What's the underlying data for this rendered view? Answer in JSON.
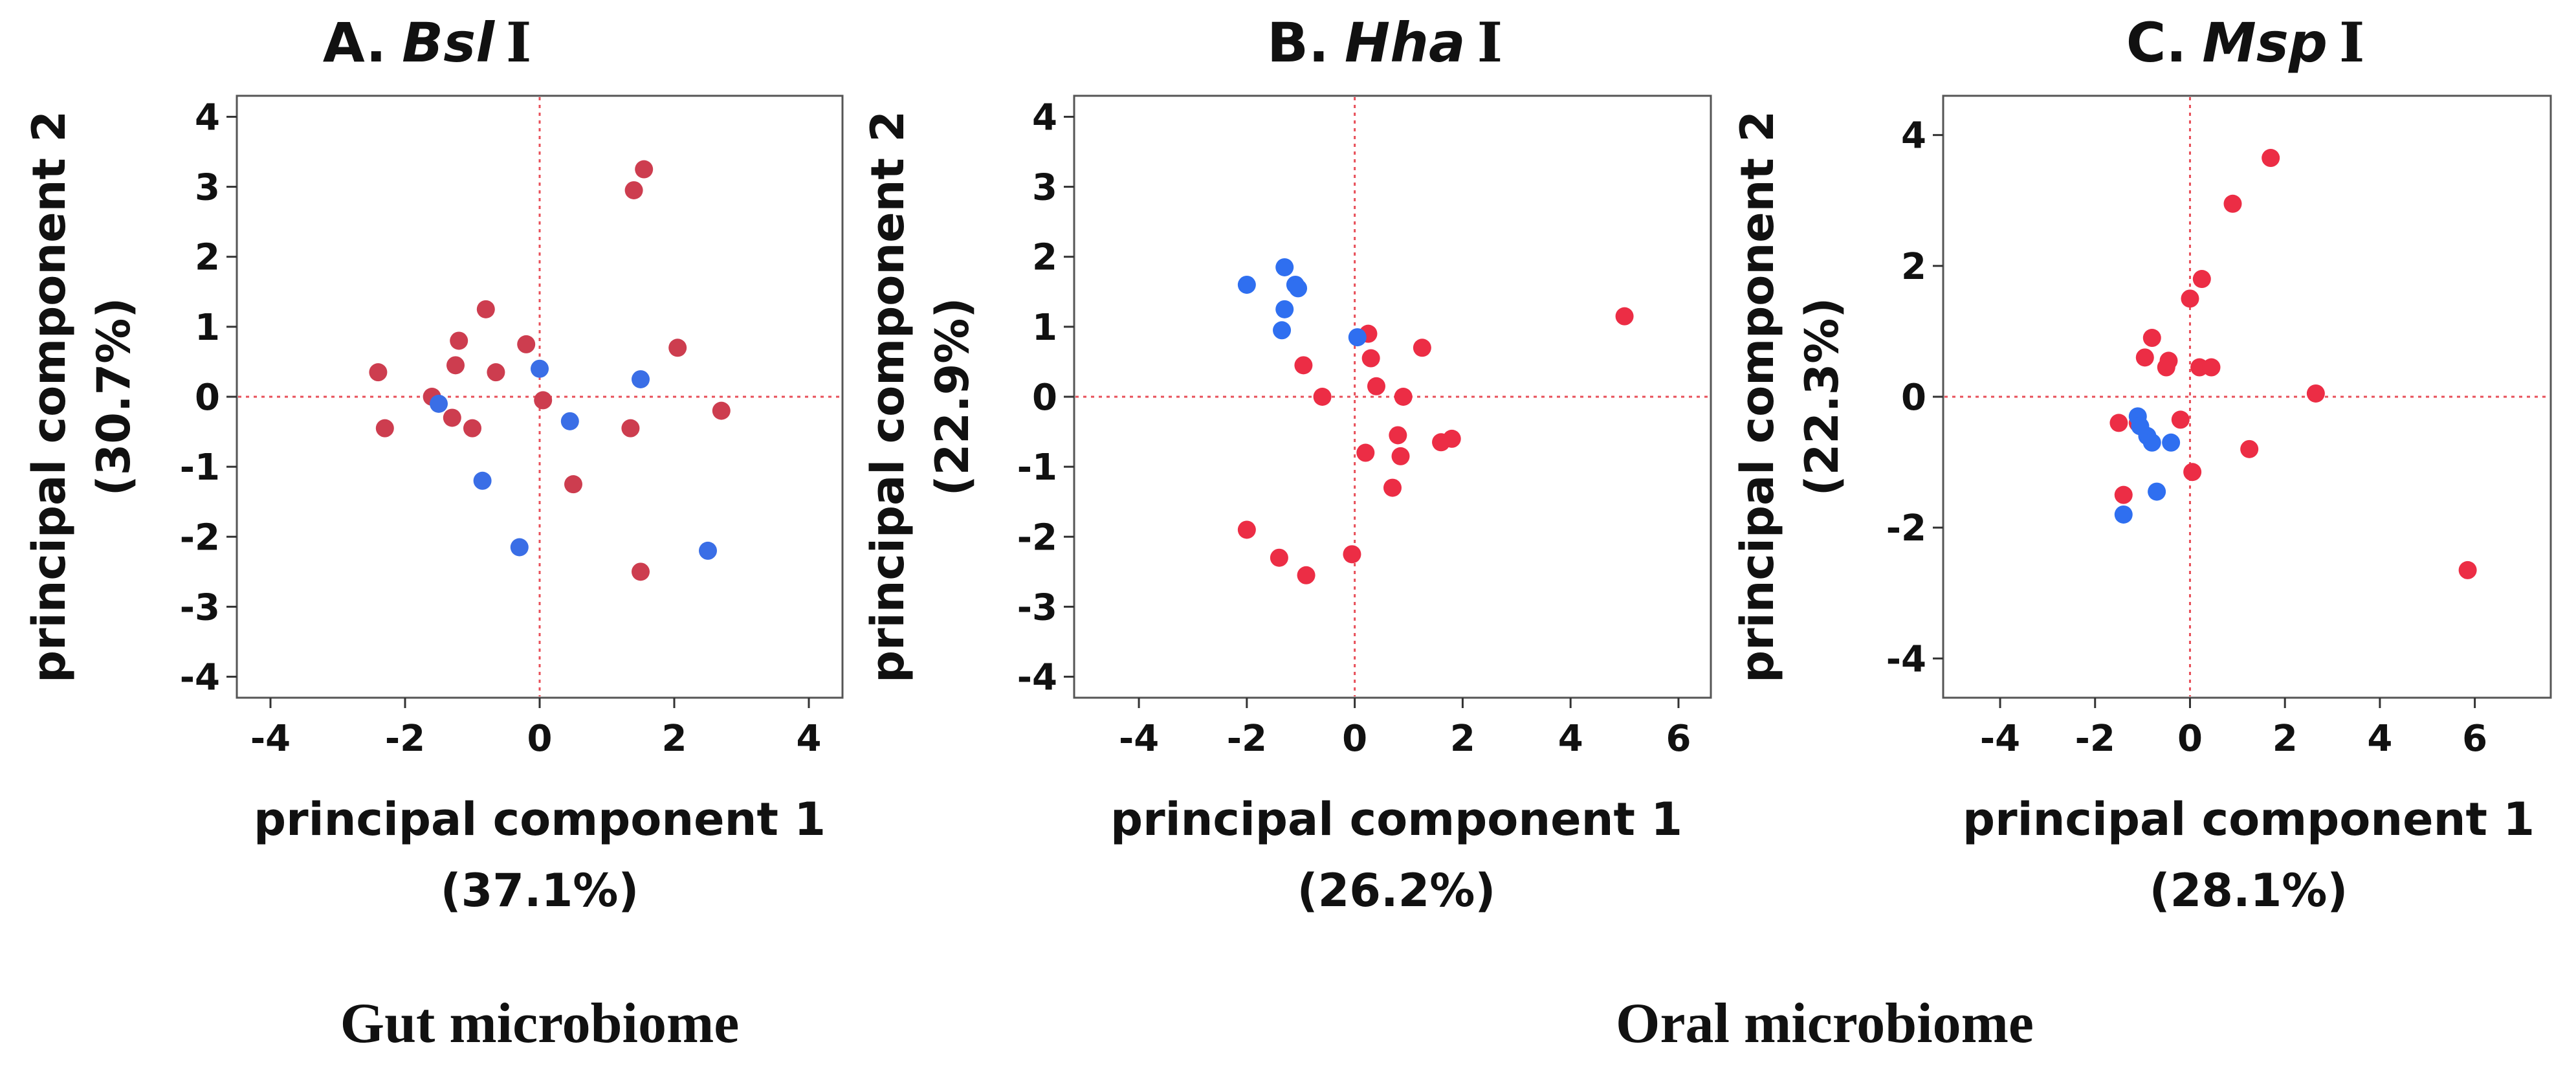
{
  "chart_data": [
    {
      "type": "scatter",
      "title_prefix": "A.",
      "title_enzyme": "Bsl",
      "title_suffix": "I",
      "xlabel": "principal component 1",
      "xlabel_pct": "(37.1%)",
      "ylabel": "principal component 2",
      "ylabel_pct": "(30.7%)",
      "xlim": [
        -4.5,
        4.5
      ],
      "ylim": [
        -4.3,
        4.3
      ],
      "xticks": [
        -4,
        -2,
        0,
        2,
        4
      ],
      "yticks": [
        -4,
        -3,
        -2,
        -1,
        0,
        1,
        2,
        3,
        4
      ],
      "series": [
        {
          "name": "red",
          "color": "#cd3d4f",
          "points": [
            [
              -2.4,
              0.35
            ],
            [
              -2.3,
              -0.45
            ],
            [
              -1.6,
              0.0
            ],
            [
              -1.3,
              -0.3
            ],
            [
              -1.2,
              0.8
            ],
            [
              -1.25,
              0.45
            ],
            [
              -1.0,
              -0.45
            ],
            [
              -0.8,
              1.25
            ],
            [
              -0.65,
              0.35
            ],
            [
              -0.2,
              0.75
            ],
            [
              0.05,
              -0.05
            ],
            [
              0.5,
              -1.25
            ],
            [
              1.35,
              -0.45
            ],
            [
              1.4,
              2.95
            ],
            [
              1.55,
              3.25
            ],
            [
              1.5,
              -2.5
            ],
            [
              2.05,
              0.7
            ],
            [
              2.7,
              -0.2
            ]
          ]
        },
        {
          "name": "blue",
          "color": "#3a6ee6",
          "points": [
            [
              -1.5,
              -0.1
            ],
            [
              -0.85,
              -1.2
            ],
            [
              -0.3,
              -2.15
            ],
            [
              0.0,
              0.4
            ],
            [
              0.45,
              -0.35
            ],
            [
              1.5,
              0.25
            ],
            [
              2.5,
              -2.2
            ]
          ]
        }
      ]
    },
    {
      "type": "scatter",
      "title_prefix": "B.",
      "title_enzyme": "Hha",
      "title_suffix": "I",
      "xlabel": "principal component 1",
      "xlabel_pct": "(26.2%)",
      "ylabel": "principal component 2",
      "ylabel_pct": "(22.9%)",
      "xlim": [
        -5.2,
        6.6
      ],
      "ylim": [
        -4.3,
        4.3
      ],
      "xticks": [
        -4,
        -2,
        0,
        2,
        4,
        6
      ],
      "yticks": [
        -4,
        -3,
        -2,
        -1,
        0,
        1,
        2,
        3,
        4
      ],
      "series": [
        {
          "name": "red",
          "color": "#ec2d45",
          "points": [
            [
              -2.0,
              -1.9
            ],
            [
              -1.4,
              -2.3
            ],
            [
              -0.9,
              -2.55
            ],
            [
              -0.95,
              0.45
            ],
            [
              -0.6,
              0.0
            ],
            [
              -0.05,
              -2.25
            ],
            [
              0.2,
              -0.8
            ],
            [
              0.25,
              0.9
            ],
            [
              0.3,
              0.55
            ],
            [
              0.4,
              0.15
            ],
            [
              0.7,
              -1.3
            ],
            [
              0.8,
              -0.55
            ],
            [
              0.85,
              -0.85
            ],
            [
              0.9,
              0.0
            ],
            [
              1.25,
              0.7
            ],
            [
              1.6,
              -0.65
            ],
            [
              1.8,
              -0.6
            ],
            [
              5.0,
              1.15
            ]
          ]
        },
        {
          "name": "blue",
          "color": "#2f6ff0",
          "points": [
            [
              -2.0,
              1.6
            ],
            [
              -1.3,
              1.85
            ],
            [
              -1.3,
              1.25
            ],
            [
              -1.35,
              0.95
            ],
            [
              -1.1,
              1.6
            ],
            [
              -1.05,
              1.55
            ],
            [
              0.05,
              0.85
            ]
          ]
        }
      ]
    },
    {
      "type": "scatter",
      "title_prefix": "C.",
      "title_enzyme": "Msp",
      "title_suffix": "I",
      "xlabel": "principal component 1",
      "xlabel_pct": "(28.1%)",
      "ylabel": "principal component 2",
      "ylabel_pct": "(22.3%)",
      "xlim": [
        -5.2,
        7.6
      ],
      "ylim": [
        -4.6,
        4.6
      ],
      "xticks": [
        -4,
        -2,
        0,
        2,
        4,
        6
      ],
      "yticks": [
        -4,
        -2,
        0,
        2,
        4
      ],
      "series": [
        {
          "name": "red",
          "color": "#ec2d45",
          "points": [
            [
              -1.5,
              -0.4
            ],
            [
              -1.4,
              -1.5
            ],
            [
              -1.1,
              -0.4
            ],
            [
              -0.95,
              0.6
            ],
            [
              -0.8,
              0.9
            ],
            [
              -0.5,
              0.45
            ],
            [
              -0.45,
              0.55
            ],
            [
              -0.2,
              -0.35
            ],
            [
              0.0,
              1.5
            ],
            [
              0.05,
              -1.15
            ],
            [
              0.2,
              0.45
            ],
            [
              0.25,
              1.8
            ],
            [
              0.45,
              0.45
            ],
            [
              0.9,
              2.95
            ],
            [
              1.25,
              -0.8
            ],
            [
              1.7,
              3.65
            ],
            [
              2.65,
              0.05
            ],
            [
              5.85,
              -2.65
            ]
          ]
        },
        {
          "name": "blue",
          "color": "#2f6ff0",
          "points": [
            [
              -1.4,
              -1.8
            ],
            [
              -1.1,
              -0.3
            ],
            [
              -1.05,
              -0.45
            ],
            [
              -0.9,
              -0.6
            ],
            [
              -0.8,
              -0.7
            ],
            [
              -0.7,
              -1.45
            ],
            [
              -0.4,
              -0.7
            ]
          ]
        }
      ]
    }
  ],
  "group_labels": {
    "gut": "Gut microbiome",
    "oral": "Oral microbiome"
  }
}
